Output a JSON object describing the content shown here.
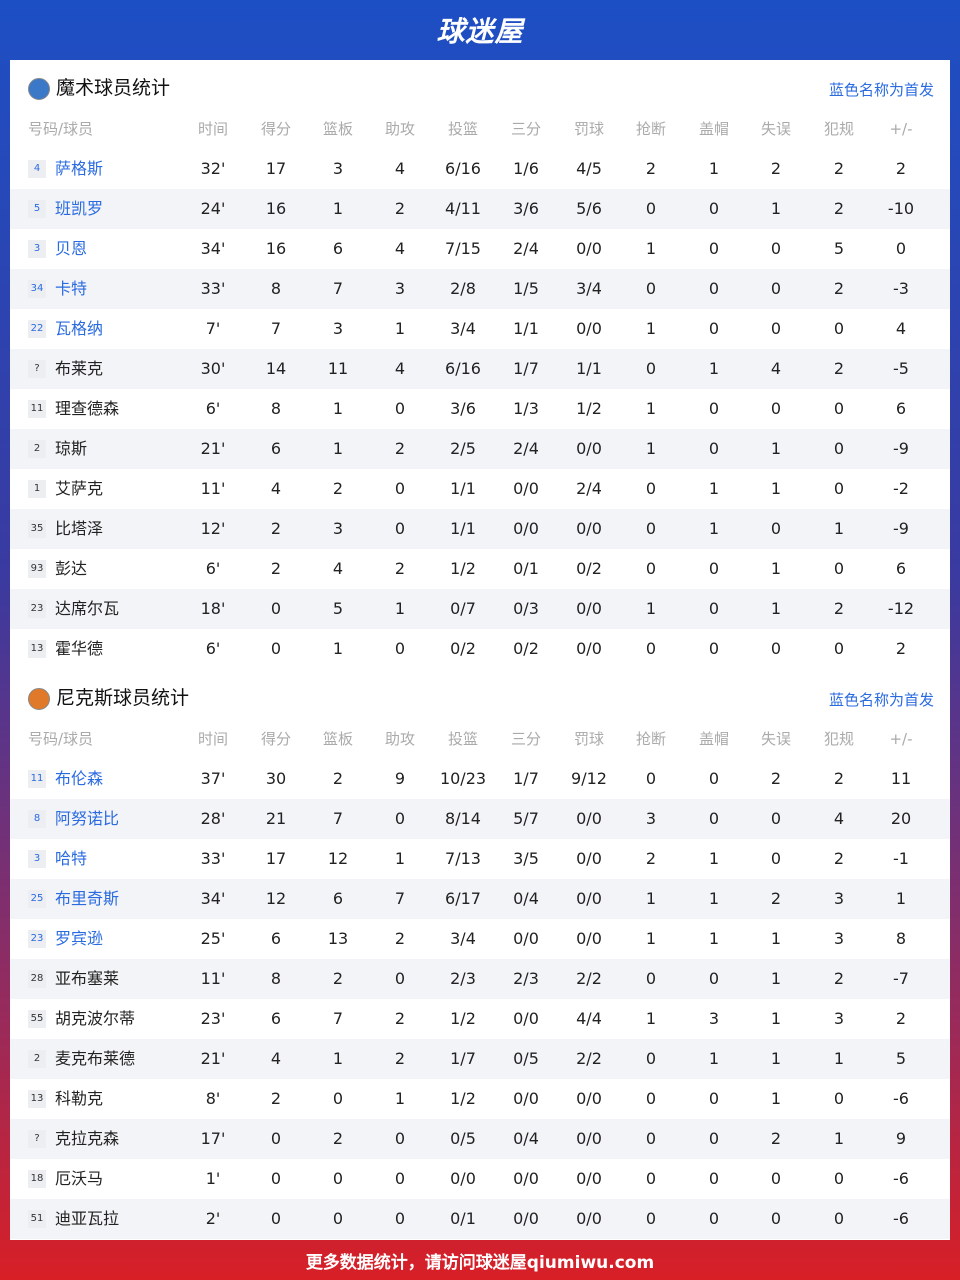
{
  "header": {
    "logo": "球迷屋"
  },
  "columns": [
    "号码/球员",
    "时间",
    "得分",
    "篮板",
    "助攻",
    "投篮",
    "三分",
    "罚球",
    "抢断",
    "盖帽",
    "失误",
    "犯规",
    "+/-"
  ],
  "teams": [
    {
      "title": "魔术球员统计",
      "note": "蓝色名称为首发",
      "starters": 5,
      "players": [
        [
          "4",
          "萨格斯",
          "32'",
          "17",
          "3",
          "4",
          "6/16",
          "1/6",
          "4/5",
          "2",
          "1",
          "2",
          "2",
          "2"
        ],
        [
          "5",
          "班凯罗",
          "24'",
          "16",
          "1",
          "2",
          "4/11",
          "3/6",
          "5/6",
          "0",
          "0",
          "1",
          "2",
          "-10"
        ],
        [
          "3",
          "贝恩",
          "34'",
          "16",
          "6",
          "4",
          "7/15",
          "2/4",
          "0/0",
          "1",
          "0",
          "0",
          "5",
          "0"
        ],
        [
          "34",
          "卡特",
          "33'",
          "8",
          "7",
          "3",
          "2/8",
          "1/5",
          "3/4",
          "0",
          "0",
          "0",
          "2",
          "-3"
        ],
        [
          "22",
          "瓦格纳",
          "7'",
          "7",
          "3",
          "1",
          "3/4",
          "1/1",
          "0/0",
          "1",
          "0",
          "0",
          "0",
          "4"
        ],
        [
          "?",
          "布莱克",
          "30'",
          "14",
          "11",
          "4",
          "6/16",
          "1/7",
          "1/1",
          "0",
          "1",
          "4",
          "2",
          "-5"
        ],
        [
          "11",
          "理查德森",
          "6'",
          "8",
          "1",
          "0",
          "3/6",
          "1/3",
          "1/2",
          "1",
          "0",
          "0",
          "0",
          "6"
        ],
        [
          "2",
          "琼斯",
          "21'",
          "6",
          "1",
          "2",
          "2/5",
          "2/4",
          "0/0",
          "1",
          "0",
          "1",
          "0",
          "-9"
        ],
        [
          "1",
          "艾萨克",
          "11'",
          "4",
          "2",
          "0",
          "1/1",
          "0/0",
          "2/4",
          "0",
          "1",
          "1",
          "0",
          "-2"
        ],
        [
          "35",
          "比塔泽",
          "12'",
          "2",
          "3",
          "0",
          "1/1",
          "0/0",
          "0/0",
          "0",
          "1",
          "0",
          "1",
          "-9"
        ],
        [
          "93",
          "彭达",
          "6'",
          "2",
          "4",
          "2",
          "1/2",
          "0/1",
          "0/2",
          "0",
          "0",
          "1",
          "0",
          "6"
        ],
        [
          "23",
          "达席尔瓦",
          "18'",
          "0",
          "5",
          "1",
          "0/7",
          "0/3",
          "0/0",
          "1",
          "0",
          "1",
          "2",
          "-12"
        ],
        [
          "13",
          "霍华德",
          "6'",
          "0",
          "1",
          "0",
          "0/2",
          "0/2",
          "0/0",
          "0",
          "0",
          "0",
          "0",
          "2"
        ]
      ]
    },
    {
      "title": "尼克斯球员统计",
      "note": "蓝色名称为首发",
      "starters": 5,
      "players": [
        [
          "11",
          "布伦森",
          "37'",
          "30",
          "2",
          "9",
          "10/23",
          "1/7",
          "9/12",
          "0",
          "0",
          "2",
          "2",
          "11"
        ],
        [
          "8",
          "阿努诺比",
          "28'",
          "21",
          "7",
          "0",
          "8/14",
          "5/7",
          "0/0",
          "3",
          "0",
          "0",
          "4",
          "20"
        ],
        [
          "3",
          "哈特",
          "33'",
          "17",
          "12",
          "1",
          "7/13",
          "3/5",
          "0/0",
          "2",
          "1",
          "0",
          "2",
          "-1"
        ],
        [
          "25",
          "布里奇斯",
          "34'",
          "12",
          "6",
          "7",
          "6/17",
          "0/4",
          "0/0",
          "1",
          "1",
          "2",
          "3",
          "1"
        ],
        [
          "23",
          "罗宾逊",
          "25'",
          "6",
          "13",
          "2",
          "3/4",
          "0/0",
          "0/0",
          "1",
          "1",
          "1",
          "3",
          "8"
        ],
        [
          "28",
          "亚布塞莱",
          "11'",
          "8",
          "2",
          "0",
          "2/3",
          "2/3",
          "2/2",
          "0",
          "0",
          "1",
          "2",
          "-7"
        ],
        [
          "55",
          "胡克波尔蒂",
          "23'",
          "6",
          "7",
          "2",
          "1/2",
          "0/0",
          "4/4",
          "1",
          "3",
          "1",
          "3",
          "2"
        ],
        [
          "2",
          "麦克布莱德",
          "21'",
          "4",
          "1",
          "2",
          "1/7",
          "0/5",
          "2/2",
          "0",
          "1",
          "1",
          "1",
          "5"
        ],
        [
          "13",
          "科勒克",
          "8'",
          "2",
          "0",
          "1",
          "1/2",
          "0/0",
          "0/0",
          "0",
          "0",
          "1",
          "0",
          "-6"
        ],
        [
          "?",
          "克拉克森",
          "17'",
          "0",
          "2",
          "0",
          "0/5",
          "0/4",
          "0/0",
          "0",
          "0",
          "2",
          "1",
          "9"
        ],
        [
          "18",
          "厄沃马",
          "1'",
          "0",
          "0",
          "0",
          "0/0",
          "0/0",
          "0/0",
          "0",
          "0",
          "0",
          "0",
          "-6"
        ],
        [
          "51",
          "迪亚瓦拉",
          "2'",
          "0",
          "0",
          "0",
          "0/1",
          "0/0",
          "0/0",
          "0",
          "0",
          "0",
          "0",
          "-6"
        ]
      ]
    }
  ],
  "footer": "更多数据统计，请访问球迷屋qiumiwu.com"
}
